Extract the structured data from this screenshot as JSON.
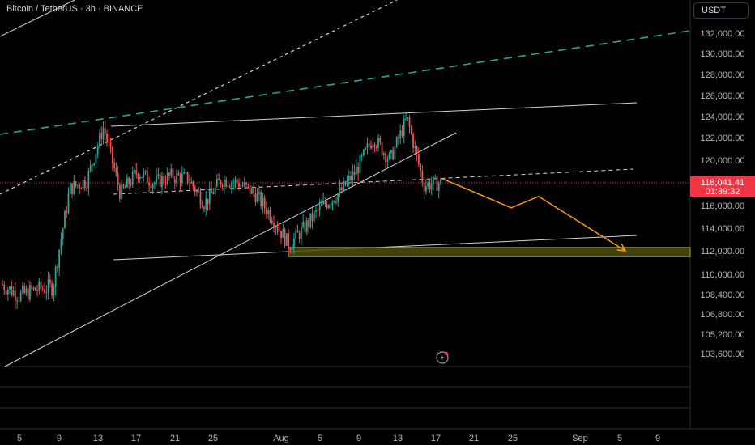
{
  "header": {
    "symbol_title": "Bitcoin / TetherUS · 3h · BINANCE",
    "currency": "USDT"
  },
  "last_price": {
    "price": "118,041.41",
    "countdown": "01:39:32",
    "value": 118041.41,
    "color": "#f23645"
  },
  "chart_data": {
    "type": "candlestick",
    "series": [
      {
        "name": "BTC/USDT 3h",
        "ohlc_sample": [
          {
            "date": "Jul 3",
            "close": 109200
          },
          {
            "date": "Jul 5",
            "close": 108300
          },
          {
            "date": "Jul 7",
            "close": 108800
          },
          {
            "date": "Jul 9",
            "close": 109000
          },
          {
            "date": "Jul 11",
            "close": 117500
          },
          {
            "date": "Jul 13",
            "close": 118200
          },
          {
            "date": "Jul 14",
            "close": 123000
          },
          {
            "date": "Jul 15",
            "close": 117000
          },
          {
            "date": "Jul 17",
            "close": 119000
          },
          {
            "date": "Jul 19",
            "close": 118000
          },
          {
            "date": "Jul 21",
            "close": 118600
          },
          {
            "date": "Jul 23",
            "close": 118400
          },
          {
            "date": "Jul 25",
            "close": 116200
          },
          {
            "date": "Jul 27",
            "close": 118300
          },
          {
            "date": "Jul 29",
            "close": 118000
          },
          {
            "date": "Jul 31",
            "close": 117000
          },
          {
            "date": "Aug 1",
            "close": 115000
          },
          {
            "date": "Aug 3",
            "close": 112500
          },
          {
            "date": "Aug 5",
            "close": 114200
          },
          {
            "date": "Aug 7",
            "close": 116000
          },
          {
            "date": "Aug 9",
            "close": 117100
          },
          {
            "date": "Aug 11",
            "close": 119100
          },
          {
            "date": "Aug 12",
            "close": 122000
          },
          {
            "date": "Aug 13",
            "close": 120000
          },
          {
            "date": "Aug 14",
            "close": 123800
          },
          {
            "date": "Aug 15",
            "close": 117800
          },
          {
            "date": "Aug 17",
            "close": 118041
          }
        ]
      }
    ],
    "x_ticks": [
      "5",
      "9",
      "13",
      "17",
      "21",
      "25",
      "Aug",
      "5",
      "9",
      "13",
      "17",
      "21",
      "25",
      "Sep",
      "5",
      "9"
    ],
    "y_ticks": [
      "132,000.00",
      "130,000.00",
      "128,000.00",
      "126,000.00",
      "124,000.00",
      "122,000.00",
      "120,000.00",
      "118,000.00",
      "116,000.00",
      "114,000.00",
      "112,000.00",
      "110,000.00",
      "108,400.00",
      "106,800.00",
      "105,200.00",
      "103,600.00"
    ],
    "support_zone": {
      "low": 111500,
      "high": 112300,
      "color": "#8a8a2a"
    },
    "projection_path": [
      118400,
      115800,
      116800,
      112000
    ],
    "colors": {
      "up": "#26a69a",
      "down": "#ef5350",
      "trendline": "#d1d4dc",
      "teal_dashed": "#26a69a",
      "projection": "#ff9800"
    }
  }
}
